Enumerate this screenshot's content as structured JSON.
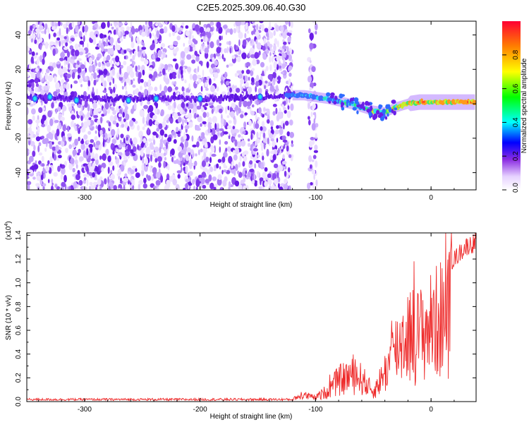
{
  "title": "C2E5.2025.309.06.40.G30",
  "chart_data": [
    {
      "type": "heatmap",
      "xlabel": "Height of straight line (km)",
      "ylabel": "Frequency (Hz)",
      "xlim": [
        -350,
        39
      ],
      "ylim": [
        -50,
        48
      ],
      "xticks": [
        -300,
        -200,
        -100,
        0
      ],
      "yticks": [
        -40,
        -20,
        0,
        20,
        40
      ],
      "colorbar": {
        "label": "Normalized spectral amplitude",
        "range": [
          0,
          1
        ],
        "ticks": [
          "0.0",
          "0.2",
          "0.4",
          "0.6",
          "0.8"
        ]
      },
      "ridge": {
        "x": [
          -350,
          -300,
          -200,
          -150,
          -125,
          -110,
          -90,
          -70,
          -50,
          -40,
          -30,
          -20,
          -10,
          0,
          20,
          39
        ],
        "y": [
          4,
          3,
          3,
          4,
          5,
          5,
          3,
          0,
          -4,
          -5,
          -2,
          0,
          1,
          1,
          1,
          1
        ]
      }
    },
    {
      "type": "line",
      "xlabel": "Height of straight line (km)",
      "ylabel": "SNR (10 * v/v)",
      "scale_label": "(x10",
      "scale_exp": "4",
      "scale_close": ")",
      "xlim": [
        -350,
        39
      ],
      "ylim": [
        0,
        1.42
      ],
      "xticks": [
        -300,
        -200,
        -100,
        0
      ],
      "yticks": [
        "0.0",
        "0.2",
        "0.4",
        "0.6",
        "0.8",
        "1.0",
        "1.2",
        "1.4"
      ],
      "color": "#ee2a2a",
      "envelope": {
        "x": [
          -350,
          -120,
          -110,
          -100,
          -90,
          -80,
          -70,
          -60,
          -50,
          -40,
          -30,
          -20,
          -10,
          0,
          10,
          20,
          30,
          39
        ],
        "y": [
          0.02,
          0.02,
          0.08,
          0.05,
          0.14,
          0.28,
          0.34,
          0.3,
          0.12,
          0.38,
          0.7,
          0.9,
          0.88,
          1.0,
          1.12,
          1.25,
          1.36,
          1.4
        ]
      }
    }
  ]
}
